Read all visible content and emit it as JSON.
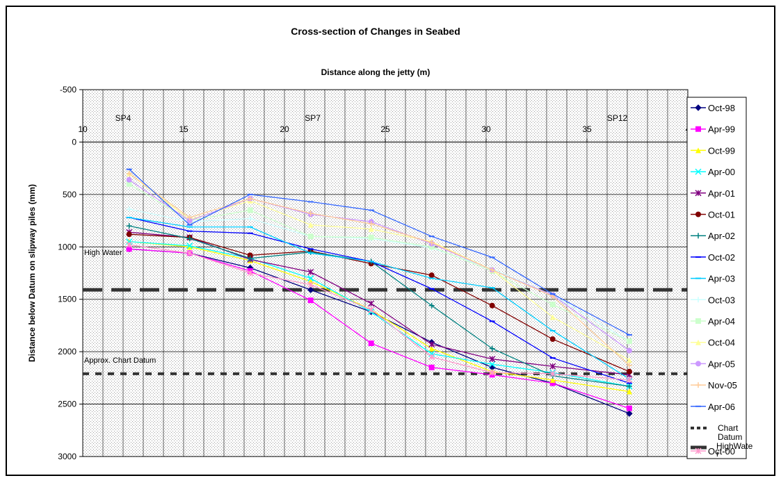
{
  "chart_data": {
    "type": "line",
    "title": "Cross-section of Changes in Seabed",
    "xlabel": "Distance along the jetty (m)",
    "ylabel": "Distance below Datum on slipway piles (mm)",
    "xlim": [
      10,
      40
    ],
    "ylim": [
      3000,
      -500
    ],
    "x_ticks": [
      "10",
      "15",
      "20",
      "25",
      "30",
      "35",
      "4"
    ],
    "y_ticks": [
      "-500",
      "0",
      "500",
      "1000",
      "1500",
      "2000",
      "2500",
      "3000"
    ],
    "x_axis_position": "top",
    "grid": true,
    "legend_position": "right",
    "pile_labels": [
      {
        "label": "SP4",
        "x": 12
      },
      {
        "label": "SP7",
        "x": 21.4
      },
      {
        "label": "SP12",
        "x": 36.5
      }
    ],
    "annotations": [
      {
        "text": "High Water",
        "x": 10,
        "y": 1050
      },
      {
        "text": "Approx. Chart Datum",
        "x": 10,
        "y": 2080
      }
    ],
    "reference_lines": [
      {
        "name": "Chart Datum",
        "y": 2210,
        "color": "#333333",
        "style": "dashed-thin"
      },
      {
        "name": "HighWater",
        "y": 1410,
        "color": "#333333",
        "style": "dashed-thick"
      }
    ],
    "x": [
      12.3,
      15.3,
      18.3,
      21.3,
      24.3,
      27.3,
      30.3,
      33.3,
      37.1
    ],
    "series": [
      {
        "name": "Oct-98",
        "color": "#000080",
        "marker": "diamond",
        "values": [
          1020,
          1060,
          1200,
          1410,
          1620,
          1910,
          2150,
          2300,
          2590
        ]
      },
      {
        "name": "Apr-99",
        "color": "#FF00FF",
        "marker": "square",
        "values": [
          1020,
          1060,
          1230,
          1510,
          1920,
          2150,
          2220,
          2300,
          2540
        ]
      },
      {
        "name": "Oct-99",
        "color": "#FFFF00",
        "marker": "triangle",
        "values": [
          950,
          1000,
          1130,
          1330,
          1600,
          1970,
          2190,
          2270,
          2380
        ]
      },
      {
        "name": "Apr-00",
        "color": "#00FFFF",
        "marker": "x",
        "values": [
          950,
          990,
          1110,
          1300,
          1620,
          2020,
          2120,
          2200,
          2330
        ]
      },
      {
        "name": "Apr-01",
        "color": "#800080",
        "marker": "star",
        "values": [
          860,
          910,
          1120,
          1240,
          1540,
          1930,
          2070,
          2140,
          2220
        ]
      },
      {
        "name": "Oct-01",
        "color": "#800000",
        "marker": "circle",
        "values": [
          880,
          910,
          1080,
          1040,
          1160,
          1270,
          1560,
          1880,
          2190
        ]
      },
      {
        "name": "Apr-02",
        "color": "#008080",
        "marker": "plus",
        "values": [
          800,
          920,
          1110,
          1050,
          1140,
          1560,
          1970,
          2230,
          2330
        ]
      },
      {
        "name": "Oct-02",
        "color": "#0000FF",
        "marker": "dash",
        "values": [
          720,
          850,
          870,
          1020,
          1140,
          1400,
          1710,
          2060,
          2300
        ]
      },
      {
        "name": "Apr-03",
        "color": "#00CCFF",
        "marker": "dash",
        "values": [
          720,
          810,
          810,
          1060,
          1140,
          1300,
          1390,
          1800,
          2260
        ]
      },
      {
        "name": "Oct-03",
        "color": "#CCFFFF",
        "marker": "plus",
        "values": [
          640,
          760,
          730,
          900,
          920,
          1010,
          1210,
          1460,
          1900
        ]
      },
      {
        "name": "Apr-04",
        "color": "#CCFFCC",
        "marker": "square",
        "values": [
          400,
          750,
          650,
          900,
          910,
          1000,
          1230,
          1550,
          1900
        ]
      },
      {
        "name": "Oct-04",
        "color": "#FFFF99",
        "marker": "triangle",
        "values": [
          300,
          740,
          560,
          790,
          830,
          950,
          1220,
          1670,
          2080
        ]
      },
      {
        "name": "Apr-05",
        "color": "#CC99FF",
        "marker": "circle",
        "values": [
          360,
          750,
          540,
          690,
          760,
          970,
          1220,
          1460,
          1990
        ]
      },
      {
        "name": "Nov-05",
        "color": "#FFCC99",
        "marker": "plus",
        "values": [
          300,
          720,
          540,
          680,
          780,
          960,
          1220,
          1470,
          2130
        ]
      },
      {
        "name": "Apr-06",
        "color": "#3366FF",
        "marker": "dash",
        "values": [
          260,
          790,
          500,
          570,
          650,
          900,
          1100,
          1450,
          1840
        ]
      },
      {
        "name": "Oct-00",
        "color": "#FF99CC",
        "marker": "star",
        "values": [
          980,
          1060,
          1250,
          1360,
          1600,
          2050,
          2200,
          2210,
          2270
        ]
      }
    ]
  }
}
